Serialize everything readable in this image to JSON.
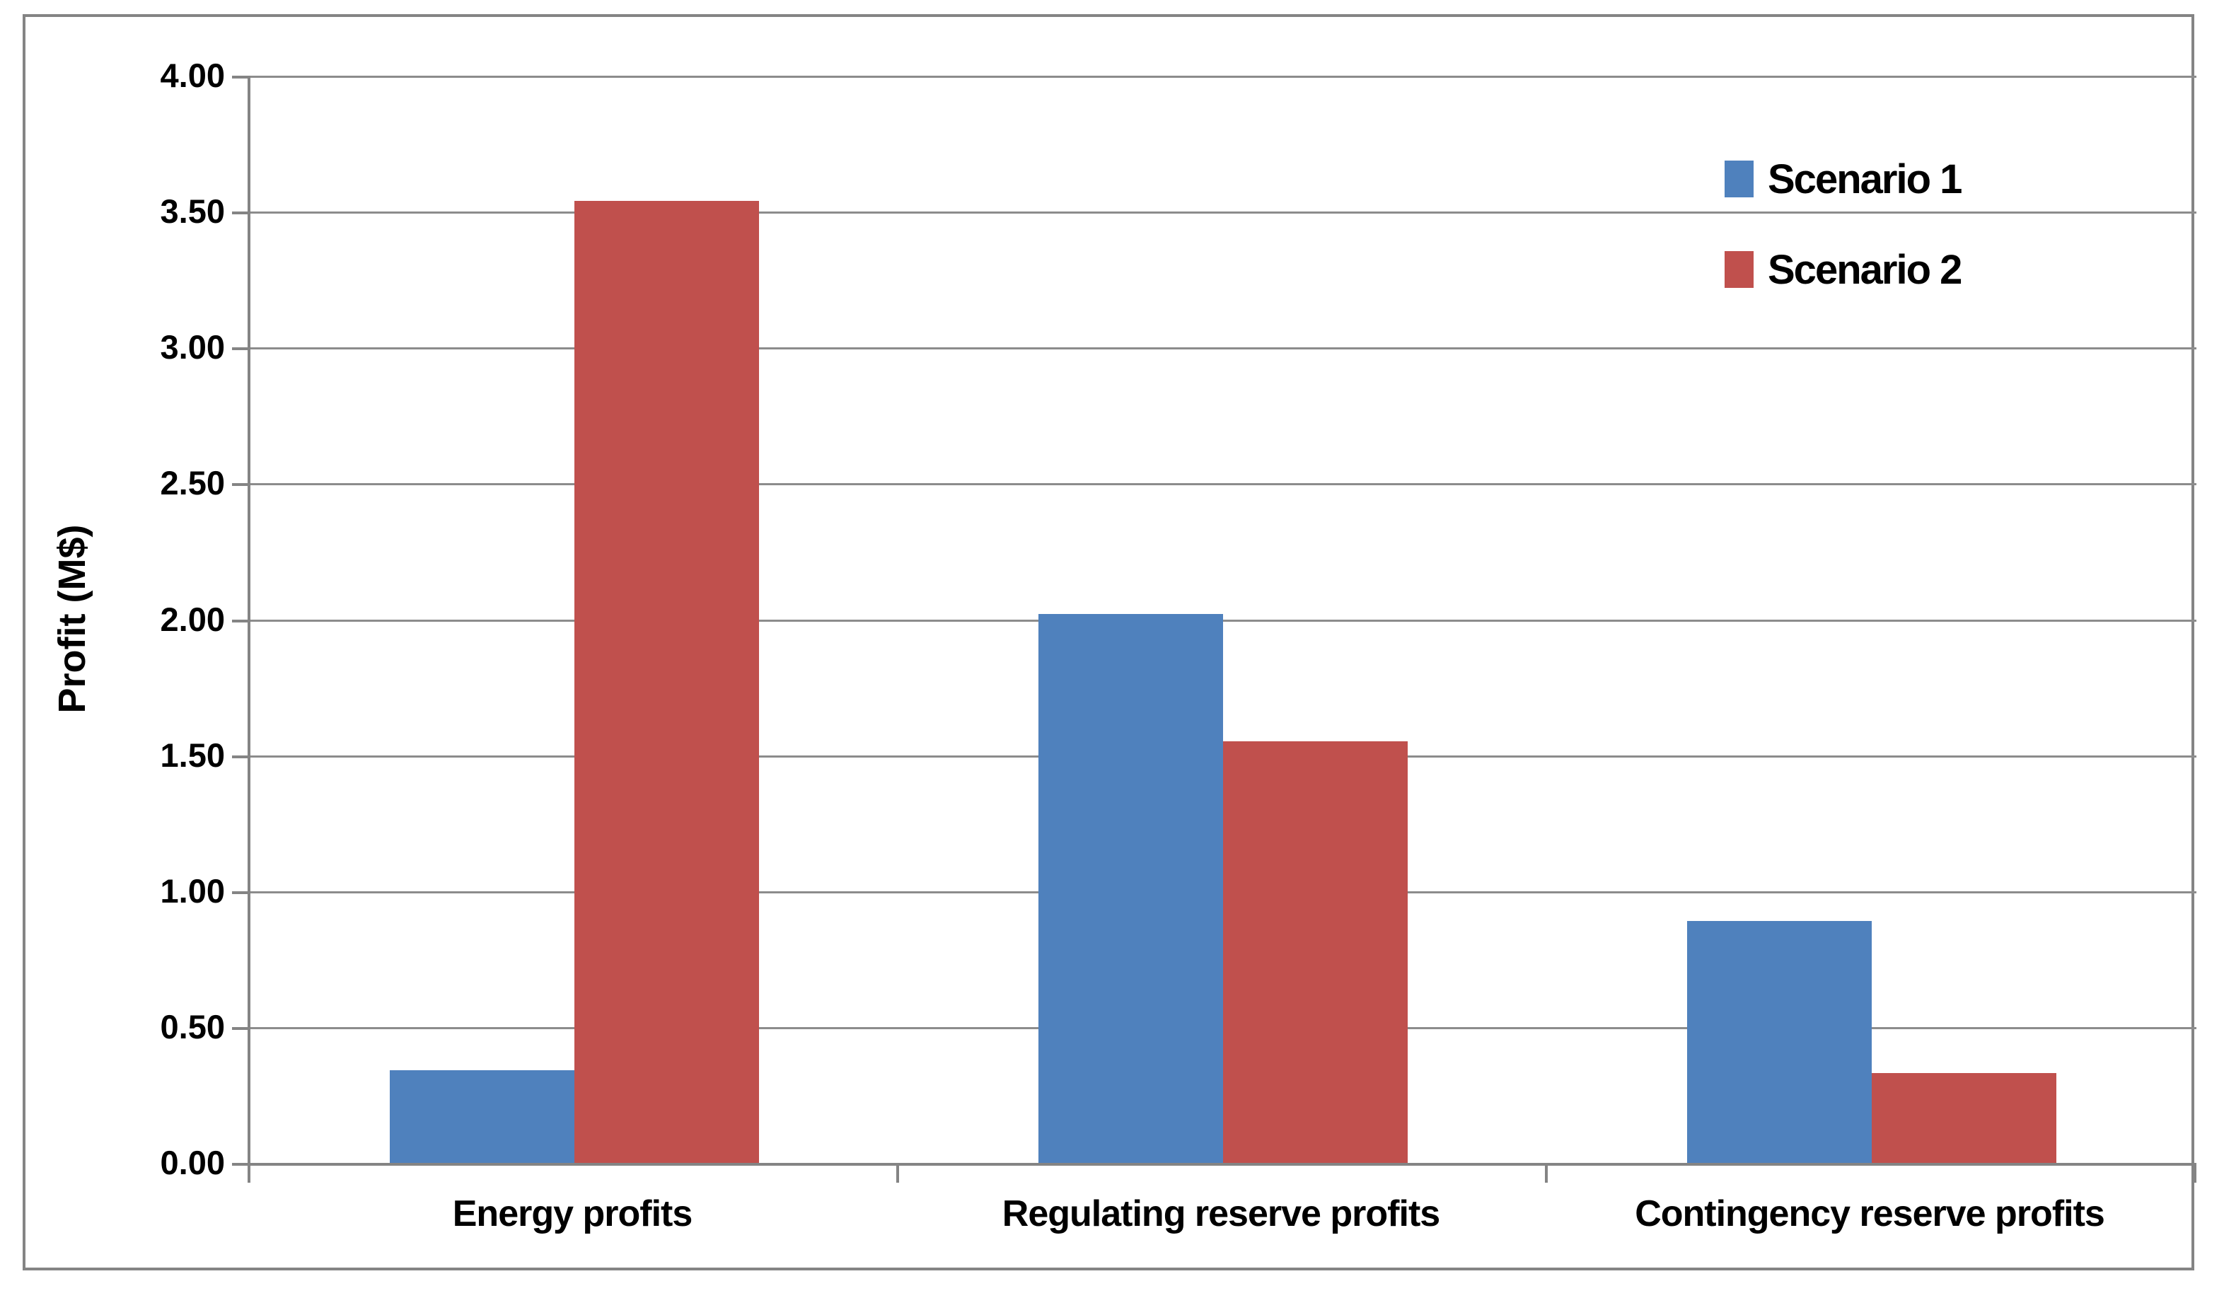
{
  "chart_data": {
    "type": "bar",
    "title": "",
    "xlabel": "",
    "ylabel": "Profit (M$)",
    "categories": [
      "Energy profits",
      "Regulating reserve profits",
      "Contingency reserve profits"
    ],
    "series": [
      {
        "name": "Scenario 1",
        "color": "#4F81BD",
        "values": [
          0.34,
          2.02,
          0.89
        ]
      },
      {
        "name": "Scenario 2",
        "color": "#C0504D",
        "values": [
          3.54,
          1.55,
          0.33
        ]
      }
    ],
    "ylim": [
      0,
      4
    ],
    "ytick_step": 0.5,
    "ytick_labels": [
      "4.00",
      "3.50",
      "3.00",
      "2.50",
      "2.00",
      "1.50",
      "1.00",
      "0.50",
      "0.00"
    ],
    "grid": true,
    "legend_position": "top-right-inside"
  },
  "colors": {
    "background": "#FFFFFF",
    "border": "#848484",
    "axis": "#848484",
    "gridline": "#8C8C8C",
    "text": "#000000"
  }
}
